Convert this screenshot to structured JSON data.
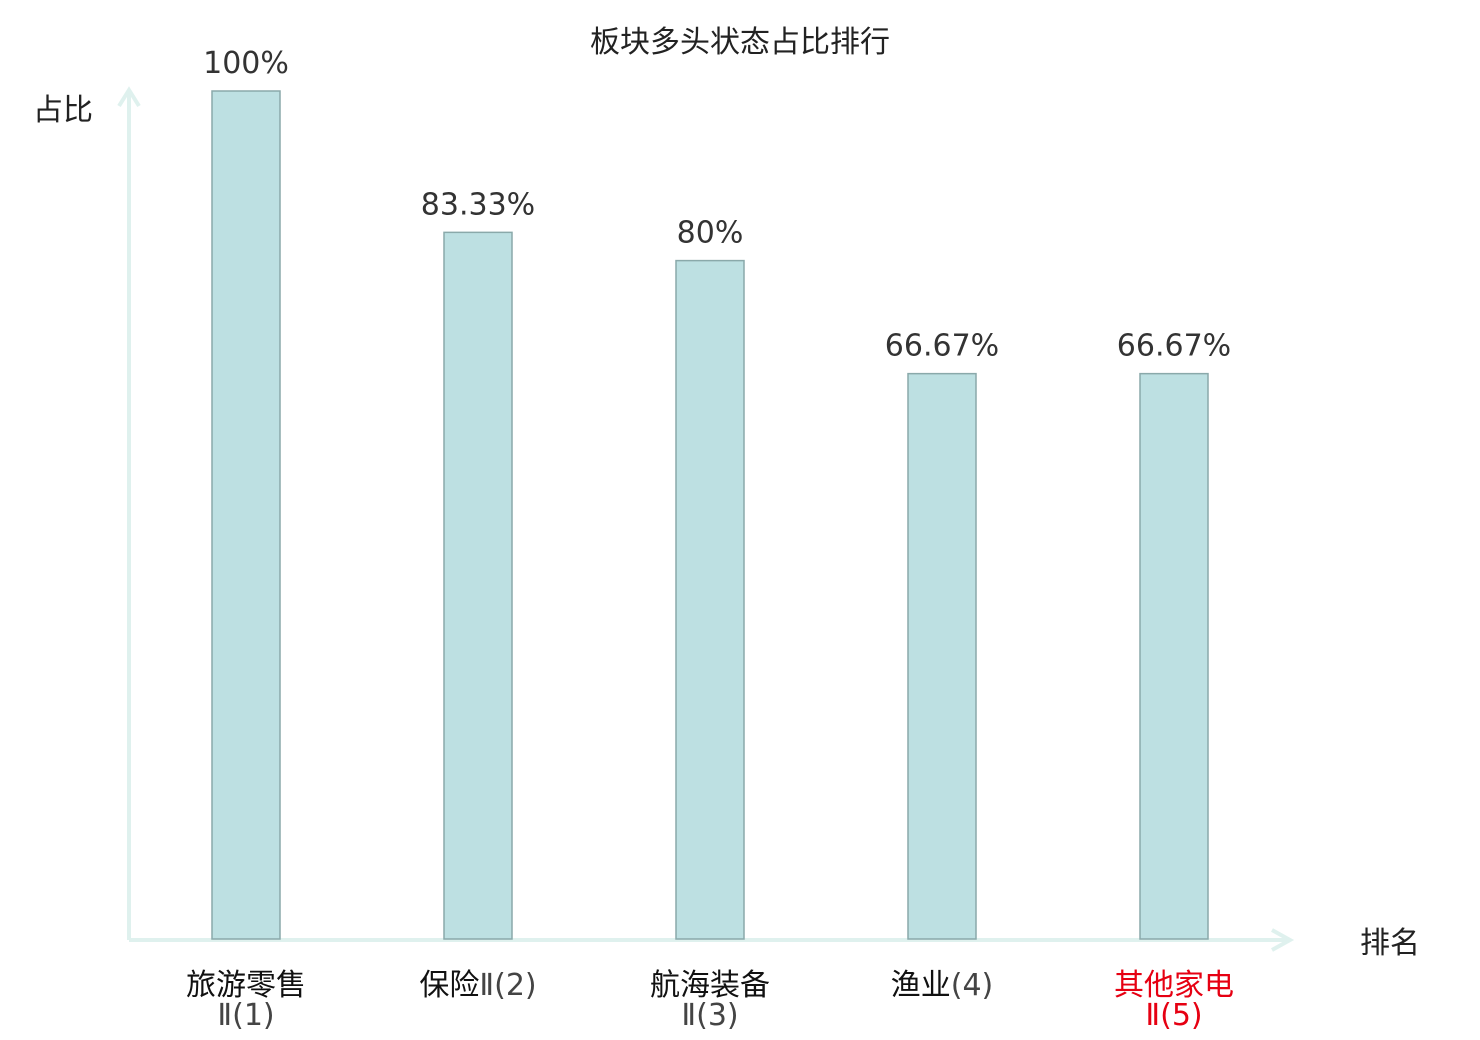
{
  "chart_data": {
    "type": "bar",
    "title": "板块多头状态占比排行",
    "ylabel": "占比",
    "xlabel": "排名",
    "categories": [
      {
        "name": "旅游零售",
        "rank": "Ⅱ(1)",
        "highlight": false
      },
      {
        "name": "保险",
        "rank": "Ⅱ(2)",
        "highlight": false
      },
      {
        "name": "航海装备",
        "rank": "Ⅱ(3)",
        "highlight": false
      },
      {
        "name": "渔业",
        "rank": "(4)",
        "highlight": false
      },
      {
        "name": "其他家电",
        "rank": "Ⅱ(5)",
        "highlight": true
      }
    ],
    "values": [
      100,
      83.33,
      80,
      66.67,
      66.67
    ],
    "value_labels": [
      "100%",
      "83.33%",
      "80%",
      "66.67%",
      "66.67%"
    ],
    "ylim": [
      0,
      100
    ],
    "grid": false,
    "colors": {
      "bar_fill": "#bde0e2",
      "bar_stroke": "#8aa9aa",
      "axis": "#dff1ee",
      "highlight_text": "#e60012"
    }
  }
}
